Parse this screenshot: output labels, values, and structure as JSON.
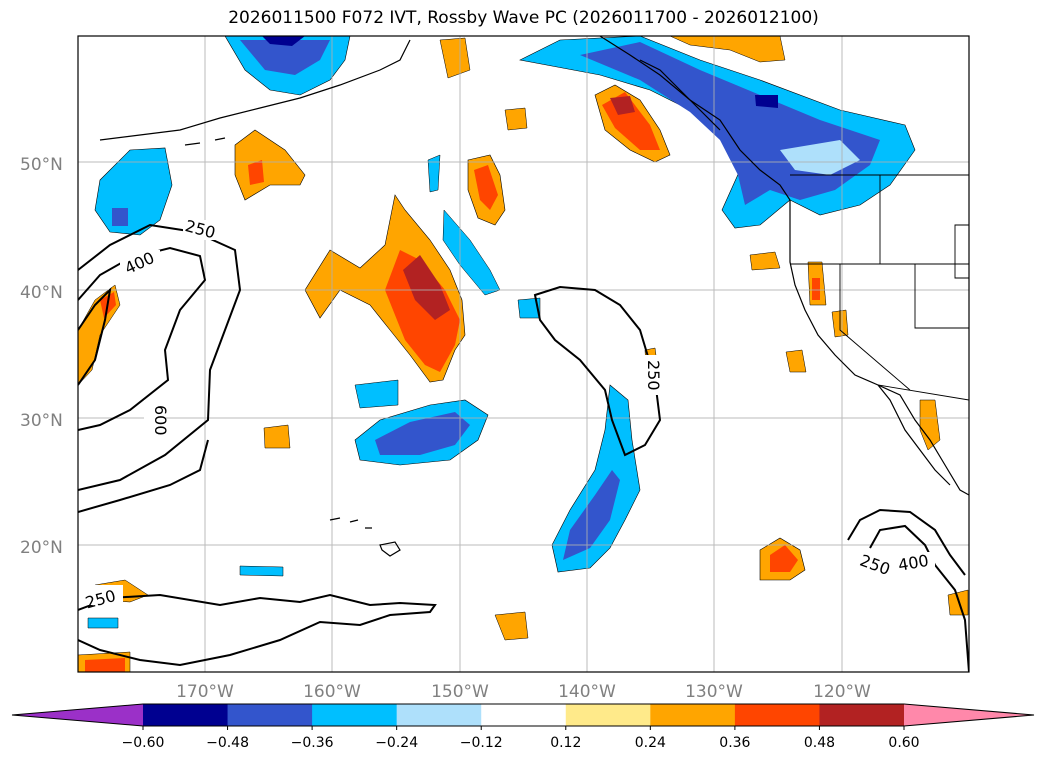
{
  "title": "2026011500 F072 IVT, Rossby Wave PC (2026011700 - 2026012100)",
  "lat_labels": [
    "50°N",
    "40°N",
    "30°N",
    "20°N"
  ],
  "lon_labels": [
    "170°W",
    "160°W",
    "150°W",
    "140°W",
    "130°W",
    "120°W"
  ],
  "colorbar": {
    "ticks": [
      "−0.60",
      "−0.48",
      "−0.36",
      "−0.24",
      "−0.12",
      "0.12",
      "0.24",
      "0.36",
      "0.48",
      "0.60"
    ],
    "colors": [
      "#9b30c8",
      "#000090",
      "#3355cc",
      "#00bfff",
      "#aee0fb",
      "#ffffff",
      "#ffea8a",
      "#ffa500",
      "#ff4500",
      "#b22222",
      "#ff88aa"
    ]
  },
  "contour_labels": [
    "250",
    "400",
    "600",
    "250",
    "250",
    "400"
  ],
  "colors": {
    "land_outline": "#000000",
    "grid": "#b0b0b0"
  }
}
